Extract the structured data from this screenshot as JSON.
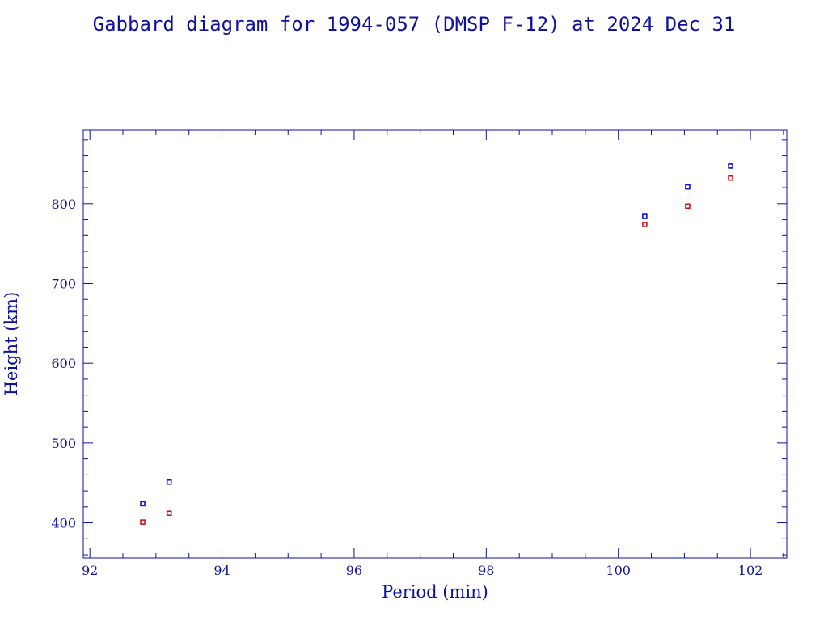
{
  "chart_data": {
    "type": "scatter",
    "title": "Gabbard diagram for 1994-057 (DMSP F-12) at 2024 Dec 31",
    "xlabel": "Period (min)",
    "ylabel": "Height (km)",
    "xlim": [
      91.9,
      102.55
    ],
    "ylim": [
      356,
      892
    ],
    "x_ticks": [
      92,
      94,
      96,
      98,
      100,
      102
    ],
    "x_tick_labels": [
      "92",
      "94",
      "96",
      "98",
      "100",
      "102"
    ],
    "x_minor_step": 0.5,
    "y_ticks": [
      400,
      500,
      600,
      700,
      800
    ],
    "y_tick_labels": [
      "400",
      "500",
      "600",
      "700",
      "800"
    ],
    "y_minor_step": 20,
    "grid": false,
    "colors": {
      "axis": "#1010a0",
      "apogee": "#1010d0",
      "perigee": "#d01010"
    },
    "series": [
      {
        "color": "#1010d0",
        "points": [
          {
            "x": 92.8,
            "y": 424
          },
          {
            "x": 93.2,
            "y": 451
          },
          {
            "x": 100.4,
            "y": 784
          },
          {
            "x": 101.05,
            "y": 821
          },
          {
            "x": 101.7,
            "y": 847
          }
        ]
      },
      {
        "color": "#d01010",
        "points": [
          {
            "x": 92.8,
            "y": 401
          },
          {
            "x": 93.2,
            "y": 412
          },
          {
            "x": 100.4,
            "y": 774
          },
          {
            "x": 101.05,
            "y": 797
          },
          {
            "x": 101.7,
            "y": 832
          }
        ]
      }
    ]
  }
}
